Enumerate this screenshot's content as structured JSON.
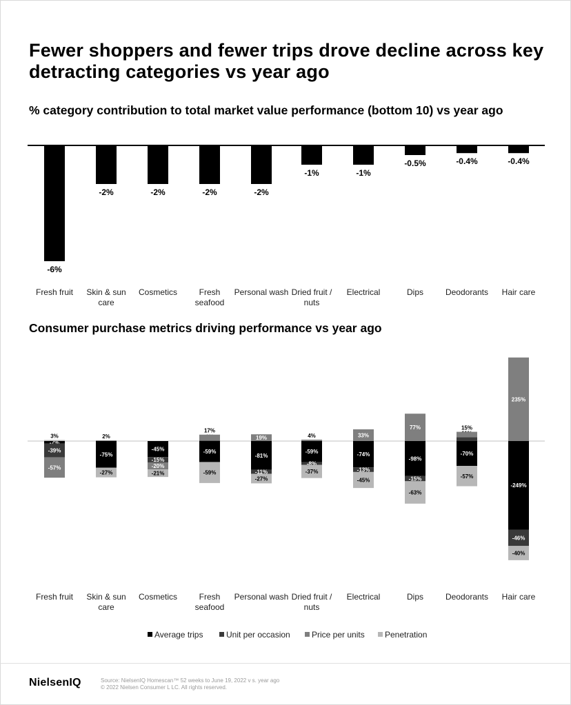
{
  "header": {
    "title": "Fewer shoppers and fewer trips drove decline across key detracting categories vs year ago",
    "subtitle_top": "% category contribution to total market value performance (bottom 10) vs year ago",
    "subtitle_bottom": "Consumer purchase metrics driving performance vs year ago"
  },
  "chart_data": [
    {
      "type": "bar",
      "title": "% category contribution to total market value performance (bottom 10) vs year ago",
      "categories": [
        "Fresh fruit",
        "Skin & sun care",
        "Cosmetics",
        "Fresh seafood",
        "Personal wash",
        "Dried fruit / nuts",
        "Electrical",
        "Dips",
        "Deodorants",
        "Hair care"
      ],
      "category_lines": [
        [
          "Fresh fruit"
        ],
        [
          "Skin & sun",
          "care"
        ],
        [
          "Cosmetics"
        ],
        [
          "Fresh",
          "seafood"
        ],
        [
          "Personal wash"
        ],
        [
          "Dried fruit /",
          "nuts"
        ],
        [
          "Electrical"
        ],
        [
          "Dips"
        ],
        [
          "Deodorants"
        ],
        [
          "Hair care"
        ]
      ],
      "values": [
        -6,
        -2,
        -2,
        -2,
        -2,
        -1,
        -1,
        -0.5,
        -0.4,
        -0.4
      ],
      "labels": [
        "-6%",
        "-2%",
        "-2%",
        "-2%",
        "-2%",
        "-1%",
        "-1%",
        "-0.5%",
        "-0.4%",
        "-0.4%"
      ],
      "color": "#000000"
    },
    {
      "type": "bar",
      "stacked": true,
      "title": "Consumer purchase metrics driving performance vs year ago",
      "categories": [
        "Fresh fruit",
        "Skin & sun care",
        "Cosmetics",
        "Fresh seafood",
        "Personal wash",
        "Dried fruit / nuts",
        "Electrical",
        "Dips",
        "Deodorants",
        "Hair care"
      ],
      "category_lines": [
        [
          "Fresh fruit"
        ],
        [
          "Skin & sun",
          "care"
        ],
        [
          "Cosmetics"
        ],
        [
          "Fresh",
          "seafood"
        ],
        [
          "Personal wash"
        ],
        [
          "Dried fruit /",
          "nuts"
        ],
        [
          "Electrical"
        ],
        [
          "Dips"
        ],
        [
          "Deodorants"
        ],
        [
          "Hair care"
        ]
      ],
      "legend_position": "bottom",
      "series": [
        {
          "name": "Average trips",
          "color": "#000000",
          "label_color": "#ffffff",
          "values": [
            -7,
            -75,
            -45,
            -59,
            -81,
            -59,
            -74,
            -98,
            -70,
            -249
          ]
        },
        {
          "name": "Unit per occasion",
          "color": "#3a3a3a",
          "label_color": "#ffffff",
          "values": [
            -39,
            null,
            -15,
            1,
            -11,
            -8,
            -13,
            -15,
            11,
            -46
          ]
        },
        {
          "name": "Price per units",
          "color": "#7f7f7f",
          "label_color": "#ffffff",
          "values": [
            -57,
            2,
            -20,
            17,
            19,
            4,
            33,
            77,
            15,
            235
          ]
        },
        {
          "name": "Penetration",
          "color": "#b7b7b7",
          "label_color": "#000000",
          "values": [
            3,
            -27,
            -21,
            -59,
            -27,
            -37,
            -45,
            -63,
            -57,
            -40
          ]
        }
      ],
      "stacks": [
        [
          {
            "s": 0,
            "label": "-7%"
          },
          {
            "s": 1,
            "label": "-39%"
          },
          {
            "s": 2,
            "label": "-57%"
          },
          {
            "s": 3,
            "label": "3%"
          }
        ],
        [
          {
            "s": 0,
            "label": "-75%"
          },
          {
            "s": 3,
            "label": "-27%"
          },
          {
            "s": 2,
            "label": "2%"
          }
        ],
        [
          {
            "s": 0,
            "label": "-45%"
          },
          {
            "s": 1,
            "label": "-15%"
          },
          {
            "s": 2,
            "label": "-20%"
          },
          {
            "s": 3,
            "label": "-21%"
          }
        ],
        [
          {
            "s": 0,
            "label": "-59%"
          },
          {
            "s": 3,
            "label": "-59%"
          },
          {
            "s": 1,
            "label": "1%"
          },
          {
            "s": 2,
            "label": "17%"
          }
        ],
        [
          {
            "s": 0,
            "label": "-81%"
          },
          {
            "s": 1,
            "label": "-11%"
          },
          {
            "s": 3,
            "label": "-27%"
          },
          {
            "s": 2,
            "label": "19%"
          }
        ],
        [
          {
            "s": 0,
            "label": "-59%"
          },
          {
            "s": 1,
            "label": "-8%"
          },
          {
            "s": 3,
            "label": "-37%"
          },
          {
            "s": 2,
            "label": "4%"
          }
        ],
        [
          {
            "s": 0,
            "label": "-74%"
          },
          {
            "s": 1,
            "label": "-13%"
          },
          {
            "s": 3,
            "label": "-45%"
          },
          {
            "s": 2,
            "label": "33%"
          }
        ],
        [
          {
            "s": 0,
            "label": "-98%"
          },
          {
            "s": 1,
            "label": "-15%"
          },
          {
            "s": 3,
            "label": "-63%"
          },
          {
            "s": 2,
            "label": "77%"
          }
        ],
        [
          {
            "s": 0,
            "label": "-70%"
          },
          {
            "s": 3,
            "label": "-57%"
          },
          {
            "s": 1,
            "label": "11%"
          },
          {
            "s": 2,
            "label": "15%"
          }
        ],
        [
          {
            "s": 0,
            "label": "-249%"
          },
          {
            "s": 1,
            "label": "-46%"
          },
          {
            "s": 3,
            "label": "-40%"
          },
          {
            "s": 2,
            "label": "235%"
          }
        ]
      ]
    }
  ],
  "footer": {
    "logo": "NielsenIQ",
    "source_line1": "Source: NielsenIQ Homescan™ 52 weeks to June 19, 2022 v s. year ago",
    "source_line2": "© 2022 Nielsen Consumer L LC. All rights reserved."
  }
}
